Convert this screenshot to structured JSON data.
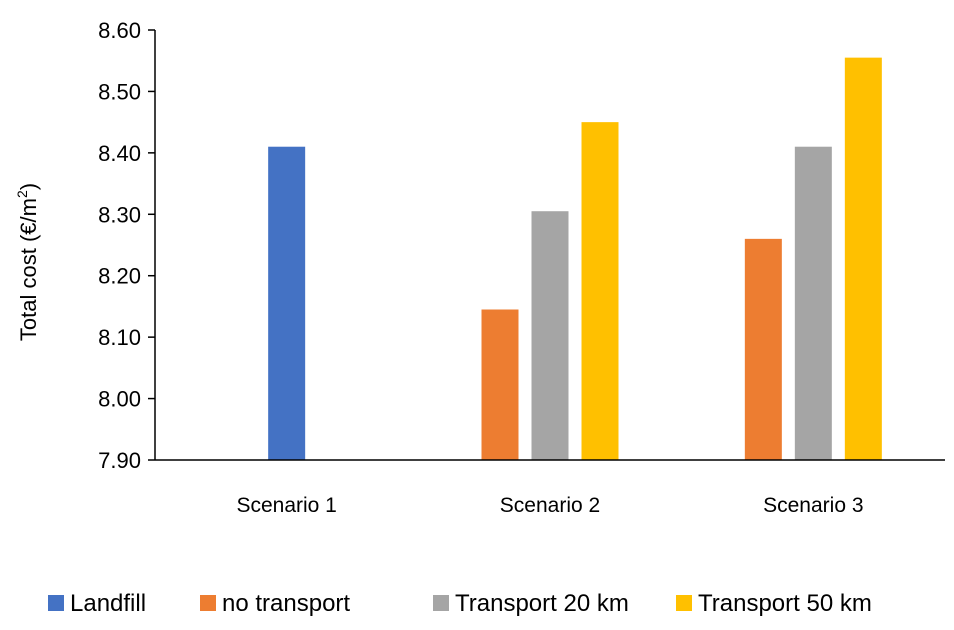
{
  "chart_data": {
    "type": "bar",
    "title": "",
    "xlabel": "",
    "ylabel": "Total cost (€/m",
    "ylabel_sup": "2",
    "ylabel_end": ")",
    "ylim": [
      7.9,
      8.6
    ],
    "yticks": [
      7.9,
      8.0,
      8.1,
      8.2,
      8.3,
      8.4,
      8.5,
      8.6
    ],
    "ytick_labels": [
      "7.90",
      "8.00",
      "8.10",
      "8.20",
      "8.30",
      "8.40",
      "8.50",
      "8.60"
    ],
    "categories": [
      "Scenario 1",
      "Scenario 2",
      "Scenario 3"
    ],
    "series": [
      {
        "name": "Landfill",
        "color": "#4472C4",
        "values": [
          8.41,
          null,
          null
        ]
      },
      {
        "name": "no transport",
        "color": "#ED7D31",
        "values": [
          null,
          8.145,
          8.26
        ]
      },
      {
        "name": "Transport 20 km",
        "color": "#A5A5A5",
        "values": [
          null,
          8.305,
          8.41
        ]
      },
      {
        "name": "Transport 50 km",
        "color": "#FFC000",
        "values": [
          null,
          8.45,
          8.555
        ]
      }
    ],
    "grid": false,
    "legend": "bottom"
  }
}
